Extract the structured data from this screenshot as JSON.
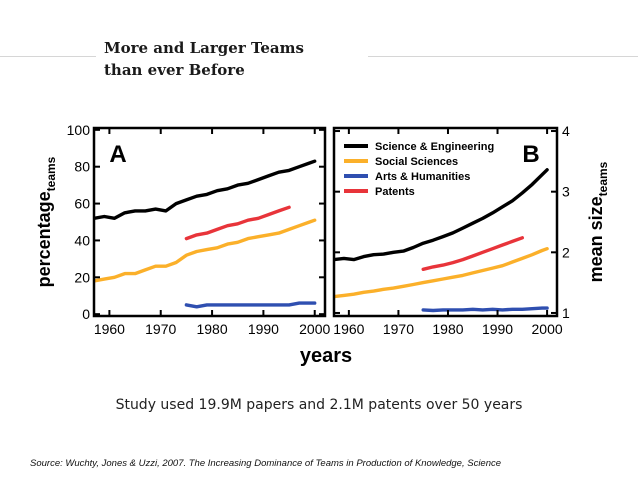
{
  "slide": {
    "title_line1": "More and Larger Teams",
    "title_line2": "than ever Before",
    "caption": "Study used 19.9M papers and 2.1M patents over 50 years",
    "source": "Source: Wuchty, Jones & Uzzi, 2007. The Increasing Dominance of Teams in Production of Knowledge, Science"
  },
  "chart_data": [
    {
      "type": "line",
      "panel_label": "A",
      "ylabel": "percentage",
      "ylabel_sub": "teams",
      "xlabel": "years",
      "xlim": [
        1957,
        2002
      ],
      "ylim": [
        -1,
        101
      ],
      "xticks": [
        1960,
        1970,
        1980,
        1990,
        2000
      ],
      "yticks": [
        0,
        20,
        40,
        60,
        80,
        100
      ],
      "colors": {
        "se": "#000000",
        "ss": "#fbb02a",
        "ah": "#2f4fb0",
        "pat": "#e8343a"
      },
      "series": [
        {
          "key": "se",
          "x": [
            1955,
            1957,
            1959,
            1961,
            1963,
            1965,
            1967,
            1969,
            1971,
            1973,
            1975,
            1977,
            1979,
            1981,
            1983,
            1985,
            1987,
            1989,
            1991,
            1993,
            1995,
            1997,
            1999,
            2000
          ],
          "y": [
            50,
            52,
            53,
            52,
            55,
            56,
            56,
            57,
            56,
            60,
            62,
            64,
            65,
            67,
            68,
            70,
            71,
            73,
            75,
            77,
            78,
            80,
            82,
            83
          ]
        },
        {
          "key": "ss",
          "x": [
            1955,
            1957,
            1959,
            1961,
            1963,
            1965,
            1967,
            1969,
            1971,
            1973,
            1975,
            1977,
            1979,
            1981,
            1983,
            1985,
            1987,
            1989,
            1991,
            1993,
            1995,
            1997,
            1999,
            2000
          ],
          "y": [
            18,
            18,
            19,
            20,
            22,
            22,
            24,
            26,
            26,
            28,
            32,
            34,
            35,
            36,
            38,
            39,
            41,
            42,
            43,
            44,
            46,
            48,
            50,
            51
          ]
        },
        {
          "key": "ah",
          "x": [
            1975,
            1977,
            1979,
            1981,
            1983,
            1985,
            1987,
            1989,
            1991,
            1993,
            1995,
            1997,
            1999,
            2000
          ],
          "y": [
            5,
            4,
            5,
            5,
            5,
            5,
            5,
            5,
            5,
            5,
            5,
            6,
            6,
            6
          ]
        },
        {
          "key": "pat",
          "x": [
            1975,
            1977,
            1979,
            1981,
            1983,
            1985,
            1987,
            1989,
            1991,
            1993,
            1995
          ],
          "y": [
            41,
            43,
            44,
            46,
            48,
            49,
            51,
            52,
            54,
            56,
            58
          ]
        }
      ]
    },
    {
      "type": "line",
      "panel_label": "B",
      "ylabel": "mean size",
      "ylabel_sub": "teams",
      "xlabel": "years",
      "xlim": [
        1957,
        2002
      ],
      "ylim": [
        0.95,
        4.05
      ],
      "xticks": [
        1960,
        1970,
        1980,
        1990,
        2000
      ],
      "yticks": [
        1,
        2,
        3,
        4
      ],
      "legend_position": "top-left",
      "legend": [
        {
          "key": "se",
          "label": "Science & Engineering"
        },
        {
          "key": "ss",
          "label": "Social Sciences"
        },
        {
          "key": "ah",
          "label": "Arts & Humanities"
        },
        {
          "key": "pat",
          "label": "Patents"
        }
      ],
      "colors": {
        "se": "#000000",
        "ss": "#fbb02a",
        "ah": "#2f4fb0",
        "pat": "#e8343a"
      },
      "series": [
        {
          "key": "se",
          "x": [
            1955,
            1957,
            1959,
            1961,
            1963,
            1965,
            1967,
            1969,
            1971,
            1973,
            1975,
            1977,
            1979,
            1981,
            1983,
            1985,
            1987,
            1989,
            1991,
            1993,
            1995,
            1997,
            1999,
            2000
          ],
          "y": [
            1.85,
            1.88,
            1.9,
            1.88,
            1.93,
            1.96,
            1.97,
            2.0,
            2.02,
            2.08,
            2.15,
            2.2,
            2.26,
            2.32,
            2.4,
            2.48,
            2.56,
            2.65,
            2.75,
            2.85,
            2.98,
            3.12,
            3.28,
            3.36
          ]
        },
        {
          "key": "ss",
          "x": [
            1955,
            1957,
            1959,
            1961,
            1963,
            1965,
            1967,
            1969,
            1971,
            1973,
            1975,
            1977,
            1979,
            1981,
            1983,
            1985,
            1987,
            1989,
            1991,
            1993,
            1995,
            1997,
            1999,
            2000
          ],
          "y": [
            1.25,
            1.27,
            1.29,
            1.31,
            1.34,
            1.36,
            1.39,
            1.41,
            1.44,
            1.47,
            1.5,
            1.53,
            1.56,
            1.59,
            1.62,
            1.66,
            1.7,
            1.74,
            1.78,
            1.84,
            1.9,
            1.96,
            2.03,
            2.06
          ]
        },
        {
          "key": "ah",
          "x": [
            1975,
            1977,
            1979,
            1981,
            1983,
            1985,
            1987,
            1989,
            1991,
            1993,
            1995,
            1997,
            1999,
            2000
          ],
          "y": [
            1.05,
            1.04,
            1.05,
            1.05,
            1.05,
            1.06,
            1.05,
            1.06,
            1.05,
            1.06,
            1.06,
            1.07,
            1.08,
            1.08
          ]
        },
        {
          "key": "pat",
          "x": [
            1975,
            1977,
            1979,
            1981,
            1983,
            1985,
            1987,
            1989,
            1991,
            1993,
            1995
          ],
          "y": [
            1.72,
            1.76,
            1.79,
            1.83,
            1.88,
            1.94,
            2.0,
            2.06,
            2.12,
            2.18,
            2.24
          ]
        }
      ]
    }
  ]
}
